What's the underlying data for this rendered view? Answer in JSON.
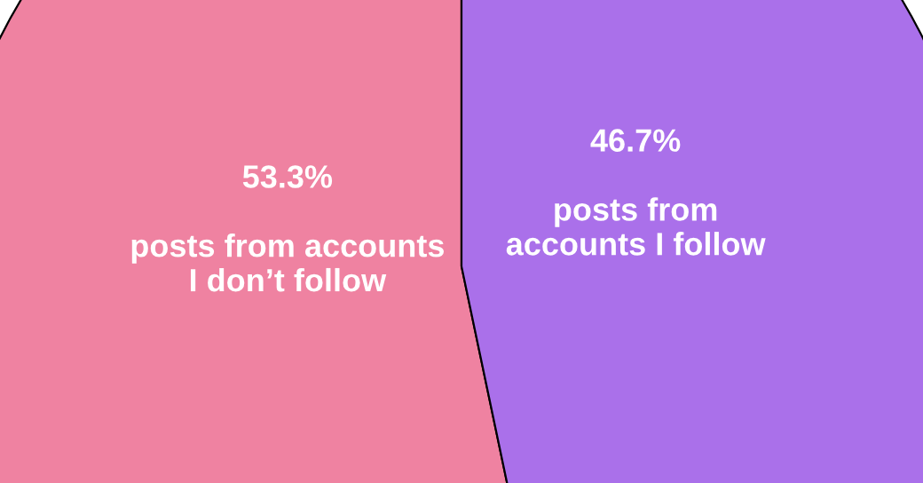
{
  "chart_data": {
    "type": "pie",
    "categories": [
      "posts from accounts\nI don’t follow",
      "posts from\naccounts I follow"
    ],
    "values": [
      53.3,
      46.7
    ],
    "value_labels": [
      "53.3%",
      "46.7%"
    ],
    "colors": [
      "#ef82a1",
      "#aa70ea"
    ]
  }
}
